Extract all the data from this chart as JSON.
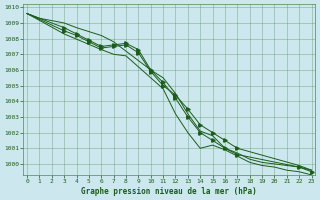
{
  "title": "Graphe pression niveau de la mer (hPa)",
  "bg_color": "#cce8ee",
  "grid_color": "#4d8a4d",
  "line_color": "#1a5c1a",
  "xlim": [
    -0.3,
    23.3
  ],
  "ylim": [
    999.3,
    1010.2
  ],
  "xticks": [
    0,
    1,
    2,
    3,
    4,
    5,
    6,
    7,
    8,
    9,
    10,
    11,
    12,
    13,
    14,
    15,
    16,
    17,
    18,
    19,
    20,
    21,
    22,
    23
  ],
  "yticks": [
    1000,
    1001,
    1002,
    1003,
    1004,
    1005,
    1006,
    1007,
    1008,
    1009,
    1010
  ],
  "lines": [
    {
      "x": [
        0,
        1,
        3,
        4,
        6,
        7,
        10,
        11,
        12,
        13,
        14,
        15,
        16,
        17,
        18,
        19,
        20,
        21,
        22,
        23
      ],
      "y": [
        1009.6,
        1009.3,
        1009.0,
        1008.7,
        1008.2,
        1007.8,
        1006.0,
        1005.5,
        1004.5,
        1003.2,
        1002.1,
        1001.8,
        1001.0,
        1000.7,
        1000.3,
        1000.1,
        1000.0,
        999.9,
        999.8,
        999.6
      ],
      "has_markers": false
    },
    {
      "x": [
        0,
        3,
        4,
        5,
        6,
        7,
        8,
        9,
        10,
        11,
        12,
        13,
        14,
        15,
        16,
        17,
        22,
        23
      ],
      "y": [
        1009.6,
        1008.7,
        1008.3,
        1007.9,
        1007.5,
        1007.6,
        1007.7,
        1007.3,
        1006.0,
        1005.2,
        1004.2,
        1003.0,
        1002.0,
        1001.5,
        1001.0,
        1000.6,
        999.8,
        999.5
      ],
      "has_markers": true,
      "marker_x": [
        3,
        4,
        5,
        6,
        7,
        8,
        9,
        10,
        11,
        12,
        13,
        14,
        15,
        16,
        17,
        22,
        23
      ]
    },
    {
      "x": [
        0,
        3,
        4,
        5,
        6,
        7,
        8,
        9,
        10,
        11,
        12,
        13,
        14,
        15,
        16,
        17,
        22,
        23
      ],
      "y": [
        1009.6,
        1008.5,
        1008.2,
        1007.8,
        1007.4,
        1007.5,
        1007.6,
        1007.1,
        1005.9,
        1005.0,
        1004.4,
        1003.5,
        1002.5,
        1002.0,
        1001.5,
        1001.0,
        999.9,
        999.6
      ],
      "has_markers": true,
      "marker_x": [
        3,
        4,
        5,
        6,
        7,
        8,
        9,
        10,
        11,
        12,
        13,
        14,
        15,
        16,
        17
      ]
    },
    {
      "x": [
        0,
        3,
        6,
        7,
        8,
        11,
        12,
        13,
        14,
        15,
        16,
        17,
        18,
        19,
        20,
        21,
        22,
        23
      ],
      "y": [
        1009.6,
        1008.3,
        1007.3,
        1007.0,
        1006.9,
        1004.8,
        1003.2,
        1002.0,
        1001.0,
        1001.2,
        1000.9,
        1000.5,
        1000.1,
        999.9,
        999.8,
        999.6,
        999.5,
        999.3
      ],
      "has_markers": false
    }
  ]
}
